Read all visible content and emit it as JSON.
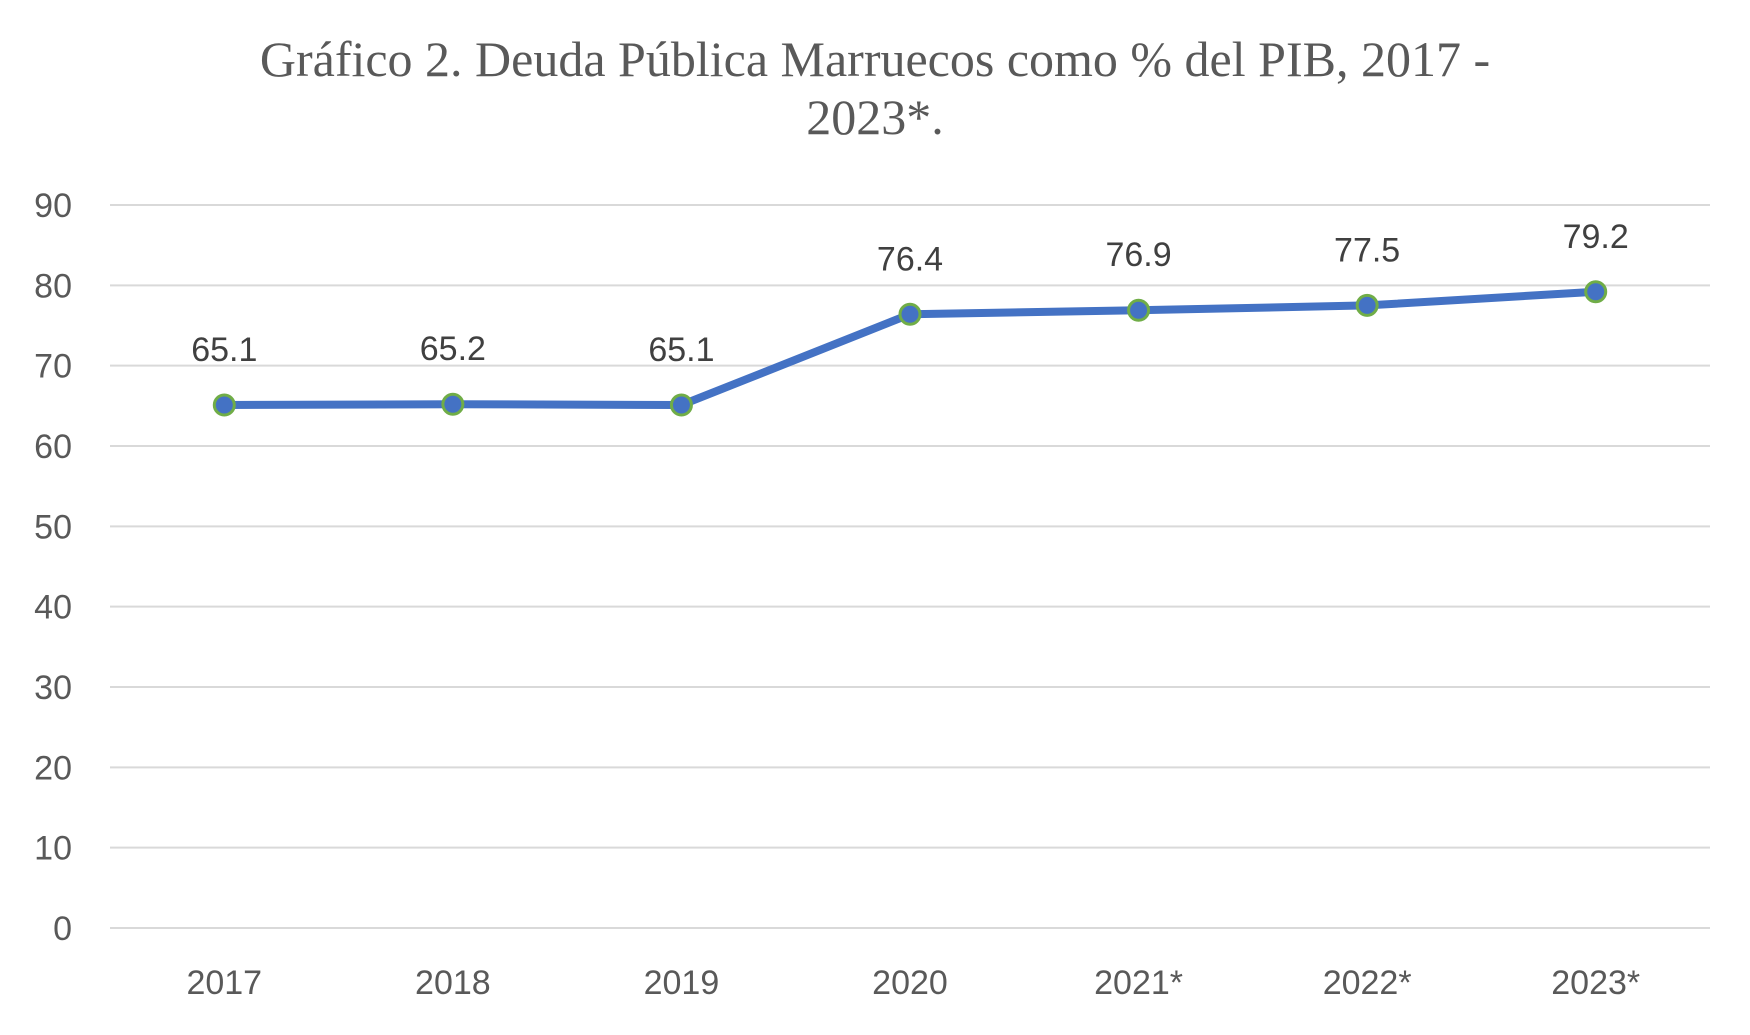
{
  "chart_data": {
    "type": "line",
    "title": "Gráfico 2. Deuda Pública Marruecos como % del PIB, 2017 - 2023*.",
    "title_lines": [
      "Gráfico 2. Deuda Pública Marruecos como % del PIB, 2017 -",
      "2023*."
    ],
    "categories": [
      "2017",
      "2018",
      "2019",
      "2020",
      "2021*",
      "2022*",
      "2023*"
    ],
    "series": [
      {
        "values": [
          65.1,
          65.2,
          65.1,
          76.4,
          76.9,
          77.5,
          79.2
        ],
        "labels": [
          "65.1",
          "65.2",
          "65.1",
          "76.4",
          "76.9",
          "77.5",
          "79.2"
        ],
        "color": "#4472c4",
        "marker_outline": "#70ad47"
      }
    ],
    "ylim": [
      0,
      90
    ],
    "yticks": [
      "0",
      "10",
      "20",
      "30",
      "40",
      "50",
      "60",
      "70",
      "80",
      "90"
    ],
    "xlabel": "",
    "ylabel": "",
    "grid": true,
    "legend": "none",
    "colors": {
      "title": "#595959",
      "ticks": "#595959",
      "data_labels": "#404040",
      "gridlines": "#d9d9d9"
    }
  }
}
